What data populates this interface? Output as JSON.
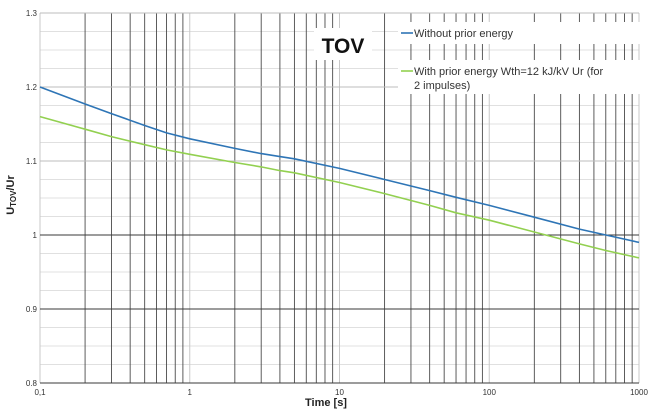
{
  "chart_data": {
    "type": "line",
    "title": "TOV",
    "xlabel": "Time [s]",
    "ylabel_main": "U",
    "ylabel_sub": "TOV",
    "ylabel_tail": "/Ur",
    "x_scale": "log",
    "xlim": [
      0.1,
      1000
    ],
    "ylim": [
      0.8,
      1.3
    ],
    "x_ticks": [
      {
        "value": 0.1,
        "label": "0,1"
      },
      {
        "value": 1,
        "label": "1"
      },
      {
        "value": 10,
        "label": "10"
      },
      {
        "value": 100,
        "label": "100"
      },
      {
        "value": 1000,
        "label": "1000"
      }
    ],
    "y_ticks": [
      {
        "value": 0.8,
        "label": "0.8"
      },
      {
        "value": 0.9,
        "label": "0.9"
      },
      {
        "value": 1.0,
        "label": "1"
      },
      {
        "value": 1.1,
        "label": "1.1"
      },
      {
        "value": 1.2,
        "label": "1.2"
      },
      {
        "value": 1.3,
        "label": "1.3"
      }
    ],
    "grid": true,
    "legend_position": "top-right",
    "series": [
      {
        "name": "Without prior energy",
        "color": "#2e75b6",
        "x": [
          0.1,
          0.2,
          0.3,
          0.5,
          0.7,
          1,
          2,
          3,
          4,
          5,
          10,
          20,
          40,
          60,
          100,
          200,
          400,
          600,
          1000
        ],
        "y": [
          1.2,
          1.177,
          1.164,
          1.148,
          1.138,
          1.13,
          1.117,
          1.11,
          1.106,
          1.103,
          1.09,
          1.075,
          1.06,
          1.051,
          1.04,
          1.024,
          1.008,
          1.0,
          0.99
        ]
      },
      {
        "name": "With prior energy Wth=12 kJ/kV Ur (for 2 impulses)",
        "color": "#92d050",
        "x": [
          0.1,
          0.2,
          0.3,
          0.5,
          0.7,
          1,
          2,
          3,
          4,
          5,
          10,
          20,
          40,
          60,
          100,
          200,
          400,
          600,
          1000
        ],
        "y": [
          1.16,
          1.143,
          1.133,
          1.122,
          1.115,
          1.109,
          1.098,
          1.092,
          1.087,
          1.084,
          1.071,
          1.056,
          1.04,
          1.03,
          1.02,
          1.004,
          0.988,
          0.979,
          0.969
        ]
      }
    ]
  }
}
